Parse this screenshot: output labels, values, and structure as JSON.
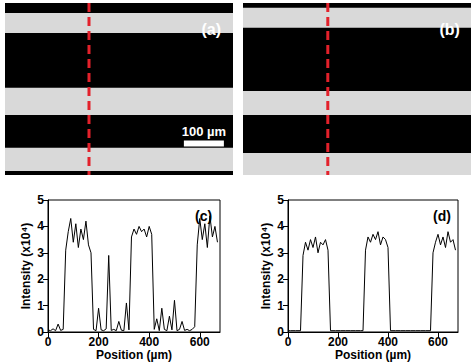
{
  "chart_data": [
    {
      "type": "image",
      "title": "(a)",
      "width": 570,
      "height": 430,
      "bands": [
        [
          25,
          75
        ],
        [
          212,
          280
        ],
        [
          362,
          420
        ]
      ],
      "color": "#d9d9d9",
      "profile_x": 210,
      "line_style": "dashed",
      "tick_labels": false,
      "scale_bar": {
        "length": 100,
        "label": "100 µm"
      }
    },
    {
      "type": "image",
      "title": "(b)",
      "width": 570,
      "height": 430,
      "bands": [
        [
          12,
          62
        ],
        [
          220,
          280
        ],
        [
          375,
          430
        ]
      ],
      "color": "#d9d9d9",
      "profile_x": 212,
      "line_style": "dashed",
      "tick_labels": false
    },
    {
      "type": "line",
      "title": "(c)",
      "x_label": "Position (µm)",
      "y_label": "Intensity (x10⁴)",
      "x": [
        0,
        10,
        20,
        30,
        40,
        50,
        60,
        70,
        80,
        90,
        100,
        110,
        120,
        130,
        140,
        150,
        160,
        170,
        180,
        190,
        200,
        210,
        220,
        230,
        240,
        250,
        260,
        270,
        280,
        290,
        300,
        310,
        320,
        330,
        340,
        350,
        360,
        370,
        380,
        390,
        400,
        410,
        420,
        430,
        440,
        450,
        460,
        470,
        480,
        490,
        500,
        510,
        520,
        530,
        540,
        550,
        560,
        570,
        580,
        590,
        600,
        610,
        620,
        630,
        640,
        650,
        660,
        670
      ],
      "series": [
        {
          "color": "#000000",
          "values": [
            0.08,
            0.05,
            0.12,
            0.05,
            0.3,
            0.06,
            0.1,
            3.1,
            3.8,
            4.3,
            3.4,
            4.1,
            3.2,
            3.9,
            3.5,
            4.2,
            3.3,
            3.0,
            0.1,
            0.05,
            0.9,
            0.08,
            0.05,
            0.12,
            2.9,
            0.06,
            0.1,
            0.05,
            0.4,
            0.07,
            0.05,
            1.1,
            0.08,
            3.6,
            3.9,
            3.7,
            4.0,
            3.8,
            3.9,
            3.6,
            4.0,
            3.7,
            0.1,
            0.5,
            0.05,
            0.9,
            0.1,
            0.05,
            0.6,
            0.08,
            1.2,
            0.05,
            0.1,
            0.4,
            0.06,
            0.1,
            0.05,
            0.1,
            0.2,
            3.3,
            4.3,
            3.5,
            4.1,
            3.2,
            4.4,
            3.6,
            4.0,
            3.4
          ]
        }
      ],
      "xlim": [
        0,
        680
      ],
      "ylim": [
        0,
        5
      ],
      "xticks": [
        0,
        200,
        400,
        600
      ],
      "yticks": [
        0,
        1,
        2,
        3,
        4,
        5
      ],
      "grid": false
    },
    {
      "type": "line",
      "title": "(d)",
      "x_label": "Position (µm)",
      "y_label": "Intensity (x10⁴)",
      "x": [
        0,
        10,
        20,
        30,
        40,
        50,
        60,
        70,
        80,
        90,
        100,
        110,
        120,
        130,
        140,
        150,
        160,
        170,
        180,
        190,
        200,
        210,
        220,
        230,
        240,
        250,
        260,
        270,
        280,
        290,
        300,
        310,
        320,
        330,
        340,
        350,
        360,
        370,
        380,
        390,
        400,
        410,
        420,
        430,
        440,
        450,
        460,
        470,
        480,
        490,
        500,
        510,
        520,
        530,
        540,
        550,
        560,
        570,
        580,
        590,
        600,
        610,
        620,
        630,
        640,
        650,
        660,
        670
      ],
      "series": [
        {
          "color": "#000000",
          "values": [
            0.05,
            0.05,
            0.05,
            0.05,
            0.05,
            0.05,
            2.9,
            3.4,
            3.1,
            3.5,
            3.2,
            3.6,
            3.0,
            3.4,
            3.3,
            3.5,
            3.1,
            0.05,
            0.05,
            0.05,
            0.05,
            0.05,
            0.05,
            0.05,
            0.05,
            0.05,
            0.05,
            0.05,
            0.05,
            0.05,
            0.05,
            3.1,
            3.6,
            3.4,
            3.7,
            3.5,
            3.8,
            3.3,
            3.6,
            3.5,
            3.2,
            0.05,
            0.05,
            0.05,
            0.05,
            0.05,
            0.05,
            0.05,
            0.05,
            0.05,
            0.05,
            0.05,
            0.05,
            0.05,
            0.05,
            0.05,
            0.05,
            0.05,
            3.0,
            3.4,
            3.7,
            3.3,
            3.6,
            3.2,
            3.8,
            3.4,
            3.5,
            3.1
          ]
        }
      ],
      "xlim": [
        0,
        680
      ],
      "ylim": [
        0,
        5
      ],
      "xticks": [
        0,
        200,
        400,
        600
      ],
      "yticks": [
        0,
        1,
        2,
        3,
        4,
        5
      ],
      "grid": false
    }
  ]
}
